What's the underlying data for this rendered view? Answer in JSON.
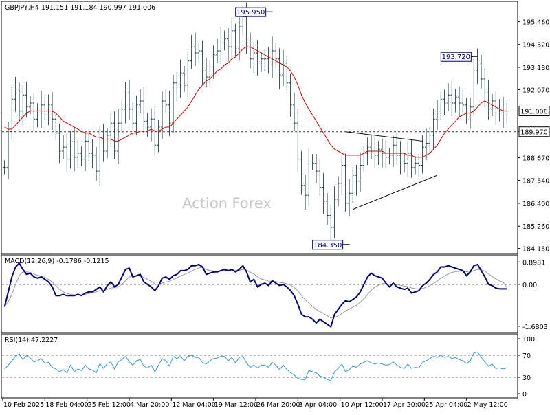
{
  "chart_data": [
    {
      "type": "candlestick",
      "panel": "price",
      "header": "GBPJPY,H4  191.151 191.184 190.997 191.006",
      "watermark": "Action Forex",
      "y_ticks": [
        "195.460",
        "194.320",
        "193.180",
        "192.070",
        "191.006",
        "189.970",
        "188.670",
        "187.540",
        "186.400",
        "185.260",
        "184.150"
      ],
      "ylim": [
        184.0,
        196.4
      ],
      "current_price": {
        "label": "191.006",
        "value": 191.006
      },
      "level": {
        "label": "189.970",
        "value": 189.97
      },
      "annotations": [
        {
          "label": "195.950",
          "x": 72,
          "y": 195.95
        },
        {
          "label": "184.350",
          "x": 93,
          "y": 184.35
        },
        {
          "label": "193.720",
          "x": 128,
          "y": 193.72
        }
      ],
      "triangle": {
        "upper": [
          [
            93,
            189.97
          ],
          [
            114,
            189.5
          ]
        ],
        "lower": [
          [
            95,
            186.1
          ],
          [
            118,
            187.8
          ]
        ]
      },
      "close": [
        188.2,
        190.0,
        191.6,
        192.0,
        191.0,
        191.8,
        191.2,
        191.4,
        190.6,
        190.8,
        191.3,
        191.0,
        191.3,
        190.6,
        189.9,
        189.0,
        189.2,
        188.6,
        189.6,
        188.7,
        188.9,
        188.6,
        189.5,
        188.9,
        188.8,
        188.0,
        189.7,
        189.0,
        189.8,
        190.4,
        189.0,
        190.4,
        191.1,
        191.9,
        191.1,
        190.4,
        191.3,
        191.5,
        190.5,
        190.2,
        190.6,
        189.3,
        190.2,
        191.5,
        191.3,
        190.4,
        192.4,
        192.2,
        192.9,
        192.3,
        193.5,
        194.2,
        193.9,
        194.0,
        193.0,
        192.7,
        193.2,
        193.8,
        194.0,
        194.5,
        194.6,
        194.2,
        195.0,
        194.1,
        195.2,
        195.7,
        194.5,
        193.6,
        193.9,
        193.3,
        193.6,
        193.6,
        193.3,
        194.0,
        193.6,
        192.8,
        193.4,
        192.4,
        191.3,
        190.4,
        188.6,
        187.3,
        186.8,
        188.5,
        188.4,
        188.0,
        187.2,
        186.5,
        185.8,
        185.2,
        186.6,
        187.4,
        188.3,
        186.4,
        186.9,
        187.8,
        187.5,
        188.3,
        188.9,
        189.2,
        189.0,
        188.8,
        189.1,
        188.9,
        188.7,
        188.8,
        189.3,
        188.8,
        188.5,
        188.4,
        188.9,
        188.2,
        188.4,
        188.3,
        189.2,
        189.4,
        189.8,
        190.6,
        190.9,
        191.6,
        191.4,
        191.8,
        191.4,
        191.7,
        191.4,
        191.3,
        190.7,
        191.2,
        193.0,
        193.4,
        192.6,
        191.9,
        191.1,
        191.5,
        190.9,
        191.0,
        190.8,
        191.0
      ],
      "ma": [
        190.2,
        190.1,
        190.1,
        190.3,
        190.5,
        190.7,
        190.9,
        191.0,
        191.0,
        191.0,
        191.0,
        191.0,
        191.0,
        191.0,
        190.9,
        190.7,
        190.5,
        190.4,
        190.3,
        190.2,
        190.1,
        190.0,
        189.9,
        189.9,
        189.8,
        189.7,
        189.7,
        189.6,
        189.6,
        189.6,
        189.5,
        189.5,
        189.6,
        189.7,
        189.8,
        189.9,
        189.9,
        190.0,
        190.0,
        190.0,
        190.1,
        190.0,
        190.0,
        190.1,
        190.2,
        190.2,
        190.4,
        190.6,
        190.8,
        191.0,
        191.2,
        191.5,
        191.8,
        192.1,
        192.3,
        192.5,
        192.6,
        192.8,
        193.0,
        193.1,
        193.3,
        193.4,
        193.6,
        193.7,
        193.9,
        194.1,
        194.2,
        194.2,
        194.1,
        194.0,
        193.9,
        193.8,
        193.7,
        193.6,
        193.5,
        193.4,
        193.3,
        193.2,
        193.0,
        192.7,
        192.3,
        191.8,
        191.4,
        191.1,
        190.8,
        190.5,
        190.2,
        189.9,
        189.6,
        189.3,
        189.1,
        189.0,
        188.9,
        188.8,
        188.8,
        188.8,
        188.8,
        188.8,
        188.9,
        189.0,
        189.0,
        189.0,
        189.0,
        189.0,
        188.9,
        188.9,
        188.9,
        188.9,
        188.9,
        188.9,
        188.8,
        188.8,
        188.7,
        188.7,
        188.7,
        188.8,
        188.9,
        189.1,
        189.3,
        189.6,
        189.9,
        190.1,
        190.3,
        190.5,
        190.7,
        190.8,
        190.9,
        190.9,
        191.0,
        191.2,
        191.4,
        191.5,
        191.4,
        191.3,
        191.2,
        191.1,
        191.0,
        191.0
      ]
    },
    {
      "type": "line",
      "panel": "macd",
      "header": "MACD(12,26,9) -0.1786 -0.1215",
      "y_ticks": [
        "0.8981",
        "0.00",
        "-1.6803"
      ],
      "ylim": [
        -1.85,
        1.1
      ],
      "series": [
        {
          "name": "MACD",
          "values": [
            -0.9,
            -0.3,
            0.3,
            0.7,
            0.85,
            0.6,
            0.4,
            0.45,
            0.3,
            0.25,
            0.3,
            0.2,
            0.1,
            -0.1,
            -0.45,
            -0.45,
            -0.4,
            -0.45,
            -0.45,
            -0.45,
            -0.4,
            -0.45,
            -0.35,
            -0.3,
            -0.3,
            -0.2,
            -0.1,
            -0.3,
            -0.05,
            0.1,
            -0.1,
            0.0,
            0.3,
            0.6,
            0.65,
            0.3,
            0.35,
            0.4,
            0.1,
            0.0,
            -0.1,
            -0.25,
            -0.05,
            0.25,
            0.3,
            0.2,
            0.35,
            0.4,
            0.55,
            0.55,
            0.6,
            0.75,
            0.75,
            0.8,
            0.7,
            0.4,
            0.45,
            0.5,
            0.5,
            0.55,
            0.6,
            0.55,
            0.6,
            0.5,
            0.6,
            0.75,
            0.5,
            0.1,
            0.2,
            -0.1,
            0.0,
            0.05,
            -0.05,
            0.15,
            0.05,
            -0.05,
            0.0,
            -0.1,
            -0.25,
            -0.45,
            -0.8,
            -1.2,
            -1.3,
            -1.3,
            -1.4,
            -1.55,
            -1.4,
            -1.5,
            -1.6,
            -1.7,
            -1.2,
            -1.0,
            -0.8,
            -0.65,
            -0.7,
            -0.6,
            -0.5,
            -0.3,
            0.0,
            0.3,
            0.45,
            0.35,
            0.3,
            0.25,
            0.05,
            -0.1,
            0.05,
            -0.1,
            -0.15,
            -0.2,
            -0.15,
            -0.35,
            -0.3,
            -0.25,
            -0.05,
            0.05,
            0.2,
            0.4,
            0.5,
            0.7,
            0.7,
            0.75,
            0.7,
            0.65,
            0.6,
            0.55,
            0.35,
            0.5,
            0.75,
            0.8,
            0.55,
            0.3,
            0.0,
            -0.05,
            -0.15,
            -0.18,
            -0.18,
            -0.18
          ]
        },
        {
          "name": "Signal",
          "values": [
            -0.9,
            -0.7,
            -0.4,
            0.0,
            0.35,
            0.5,
            0.5,
            0.48,
            0.42,
            0.36,
            0.33,
            0.28,
            0.2,
            0.1,
            -0.05,
            -0.2,
            -0.3,
            -0.36,
            -0.4,
            -0.42,
            -0.42,
            -0.43,
            -0.4,
            -0.37,
            -0.34,
            -0.3,
            -0.25,
            -0.26,
            -0.2,
            -0.14,
            -0.13,
            -0.1,
            0.0,
            0.15,
            0.3,
            0.32,
            0.33,
            0.35,
            0.28,
            0.2,
            0.12,
            0.02,
            0.0,
            0.05,
            0.1,
            0.13,
            0.2,
            0.26,
            0.34,
            0.4,
            0.46,
            0.53,
            0.6,
            0.66,
            0.68,
            0.6,
            0.56,
            0.54,
            0.53,
            0.53,
            0.55,
            0.55,
            0.56,
            0.55,
            0.56,
            0.6,
            0.58,
            0.48,
            0.42,
            0.3,
            0.22,
            0.18,
            0.13,
            0.13,
            0.12,
            0.08,
            0.06,
            0.03,
            -0.03,
            -0.12,
            -0.26,
            -0.45,
            -0.62,
            -0.75,
            -0.88,
            -1.01,
            -1.09,
            -1.17,
            -1.26,
            -1.35,
            -1.32,
            -1.26,
            -1.17,
            -1.07,
            -0.99,
            -0.91,
            -0.83,
            -0.72,
            -0.58,
            -0.4,
            -0.23,
            -0.11,
            -0.03,
            0.03,
            0.03,
            0.0,
            0.01,
            -0.01,
            -0.04,
            -0.07,
            -0.09,
            -0.14,
            -0.17,
            -0.19,
            -0.16,
            -0.12,
            -0.05,
            0.04,
            0.13,
            0.25,
            0.34,
            0.42,
            0.48,
            0.51,
            0.53,
            0.53,
            0.5,
            0.5,
            0.55,
            0.6,
            0.59,
            0.53,
            0.42,
            0.32,
            0.22,
            0.14,
            0.08,
            -0.12
          ]
        }
      ]
    },
    {
      "type": "line",
      "panel": "rsi",
      "header": "RSI(14) 47.2227",
      "y_ticks": [
        "100",
        "70",
        "30",
        "0"
      ],
      "ylim": [
        0,
        100
      ],
      "levels": [
        70,
        30
      ],
      "series": [
        {
          "name": "RSI",
          "values": [
            45,
            52,
            60,
            68,
            72,
            62,
            70,
            65,
            58,
            60,
            64,
            55,
            57,
            48,
            45,
            40,
            44,
            38,
            52,
            40,
            45,
            42,
            52,
            45,
            43,
            38,
            55,
            46,
            55,
            58,
            45,
            58,
            62,
            68,
            58,
            52,
            60,
            62,
            50,
            47,
            52,
            40,
            52,
            64,
            60,
            50,
            68,
            64,
            68,
            60,
            68,
            70,
            66,
            66,
            57,
            54,
            60,
            64,
            65,
            68,
            68,
            60,
            66,
            56,
            66,
            68,
            56,
            48,
            52,
            47,
            52,
            52,
            48,
            57,
            52,
            44,
            52,
            44,
            38,
            34,
            28,
            26,
            26,
            42,
            40,
            38,
            32,
            30,
            26,
            24,
            40,
            46,
            54,
            40,
            44,
            50,
            48,
            54,
            57,
            60,
            56,
            54,
            56,
            54,
            52,
            53,
            58,
            52,
            48,
            46,
            54,
            46,
            48,
            47,
            57,
            60,
            64,
            68,
            66,
            70,
            66,
            68,
            64,
            66,
            62,
            60,
            55,
            60,
            74,
            76,
            66,
            58,
            50,
            54,
            46,
            47,
            45,
            47
          ]
        }
      ]
    }
  ],
  "x_labels": [
    "10 Feb 2025",
    "18 Feb 04:00",
    "25 Feb 12:00",
    "4 Mar 20:00",
    "12 Mar 04:00",
    "19 Mar 12:00",
    "26 Mar 20:00",
    "3 Apr 04:00",
    "10 Apr 12:00",
    "17 Apr 20:00",
    "25 Apr 04:00",
    "2 May 12:00"
  ],
  "colors": {
    "price_bars": "#1a3a3a",
    "ma_line": "#cc0000",
    "macd_line": "#000080",
    "signal_line": "#999999",
    "rsi_line": "#3399cc",
    "current_price_line": "#b0b0b0"
  }
}
